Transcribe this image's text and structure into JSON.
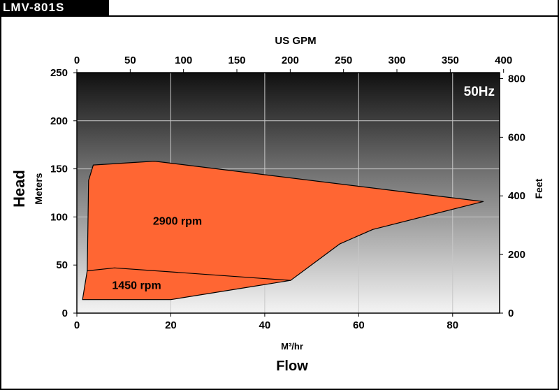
{
  "header": {
    "model": "LMV-801S"
  },
  "chart_data": {
    "type": "area",
    "frequency_badge": "50Hz",
    "title": "Flow",
    "xlabel": "M³/hr",
    "x_top_label": "US GPM",
    "ylabel_left_main": "Head",
    "ylabel_left_sub": "Meters",
    "ylabel_right": "Feet",
    "xlim": [
      0,
      90
    ],
    "ylim": [
      0,
      250
    ],
    "x_ticks": [
      0,
      20,
      40,
      60,
      80
    ],
    "y_ticks": [
      0,
      50,
      100,
      150,
      200,
      250
    ],
    "x_top_ticks": [
      0,
      50,
      100,
      150,
      200,
      250,
      300,
      350,
      400
    ],
    "y_right_ticks": [
      0,
      200,
      400,
      600,
      800
    ],
    "gpm_per_m3hr": 4.403,
    "ft_per_m": 3.281,
    "grid": true,
    "fill_color": "#ff6633",
    "series": [
      {
        "name": "2900 rpm",
        "points": [
          [
            2.2,
            40
          ],
          [
            2.5,
            138
          ],
          [
            3.5,
            154
          ],
          [
            16.5,
            158
          ],
          [
            86.5,
            116
          ],
          [
            63,
            87
          ],
          [
            56,
            72
          ],
          [
            45.5,
            34
          ],
          [
            30,
            37
          ]
        ]
      },
      {
        "name": "1450 rpm",
        "points": [
          [
            1.2,
            14
          ],
          [
            2.2,
            44
          ],
          [
            8,
            47
          ],
          [
            45.5,
            34
          ],
          [
            20,
            14
          ]
        ]
      }
    ]
  }
}
